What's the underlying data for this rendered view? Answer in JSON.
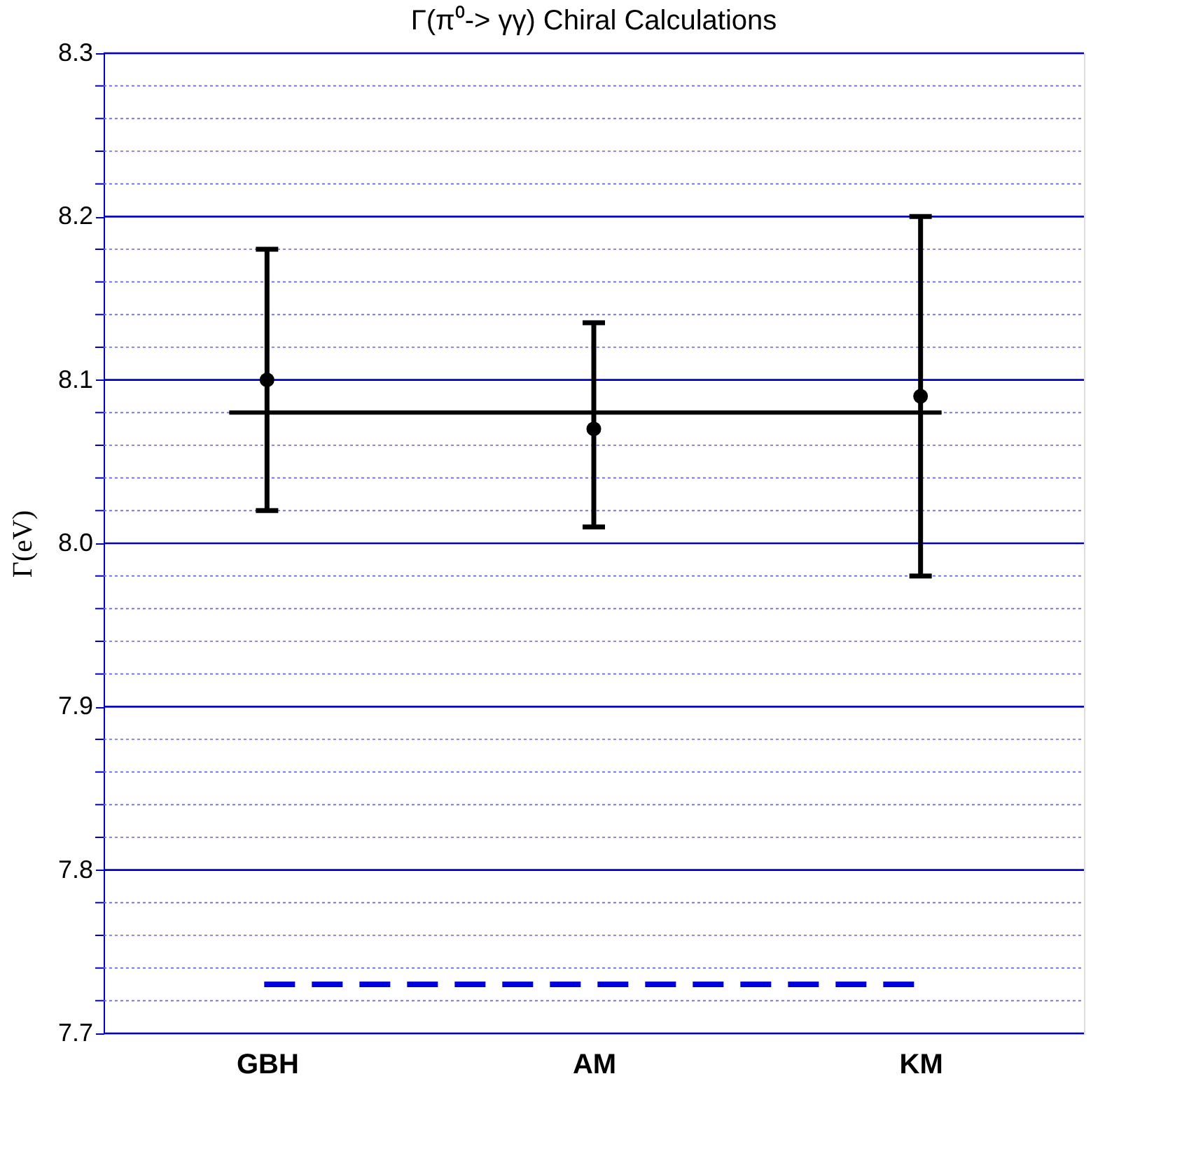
{
  "chart_data": {
    "type": "scatter",
    "title": "Γ(π⁰-> γγ)   Chiral Calculations",
    "ylabel": "Γ(eV)",
    "categories": [
      "GBH",
      "AM",
      "KM"
    ],
    "values": [
      8.1,
      8.07,
      8.09
    ],
    "errors": [
      [
        8.02,
        8.18
      ],
      [
        8.01,
        8.135
      ],
      [
        7.98,
        8.2
      ]
    ],
    "color": "#000000",
    "marker": "circle",
    "grid": true,
    "ylim": [
      7.7,
      8.3
    ],
    "yticks": [
      7.7,
      {
        "value": 7.72,
        "label": null
      },
      {
        "value": 7.74,
        "label": null
      },
      {
        "value": 7.76,
        "label": null
      },
      {
        "value": 7.78,
        "label": null
      },
      7.8,
      {
        "value": 7.82,
        "label": null
      },
      {
        "value": 7.84,
        "label": null
      },
      {
        "value": 7.86,
        "label": null
      },
      {
        "value": 7.88,
        "label": null
      },
      7.9,
      {
        "value": 7.92,
        "label": null
      },
      {
        "value": 7.94,
        "label": null
      },
      {
        "value": 7.96,
        "label": null
      },
      {
        "value": 7.98,
        "label": null
      },
      {
        "value": 8.0,
        "label": "8.0"
      },
      {
        "value": 8.02,
        "label": null
      },
      {
        "value": 8.04,
        "label": null
      },
      {
        "value": 8.06,
        "label": null
      },
      {
        "value": 8.08,
        "label": null
      },
      8.1,
      {
        "value": 8.12,
        "label": null
      },
      {
        "value": 8.14,
        "label": null
      },
      {
        "value": 8.16,
        "label": null
      },
      {
        "value": 8.18,
        "label": null
      },
      8.2,
      {
        "value": 8.22,
        "label": null
      },
      {
        "value": 8.24,
        "label": null
      },
      {
        "value": 8.26,
        "label": null
      },
      {
        "value": 8.28,
        "label": null
      },
      8.3
    ],
    "ref_lines": [
      {
        "axis": "y",
        "value": 8.08,
        "color": "#000000",
        "line_style": "solid"
      },
      {
        "axis": "y",
        "value": 7.73,
        "color": "#0000dd",
        "line_style": "dashed"
      }
    ]
  }
}
